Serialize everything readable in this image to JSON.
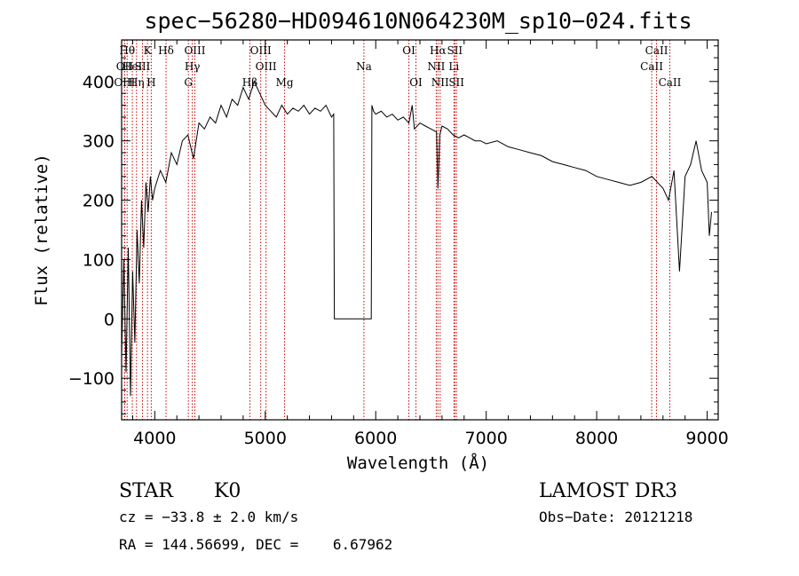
{
  "chart_data": {
    "type": "line",
    "title": "spec−56280−HD094610N064230M_sp10−024.fits",
    "xlabel": "Wavelength (Å)",
    "ylabel": "Flux (relative)",
    "xlim": [
      3700,
      9100
    ],
    "ylim": [
      -170,
      470
    ],
    "xticks": [
      {
        "value": 4000,
        "label": "4000"
      },
      {
        "value": 5000,
        "label": "5000"
      },
      {
        "value": 6000,
        "label": "6000"
      },
      {
        "value": 7000,
        "label": "7000"
      },
      {
        "value": 8000,
        "label": "8000"
      },
      {
        "value": 9000,
        "label": "9000"
      }
    ],
    "yticks": [
      {
        "value": -100,
        "label": "−100"
      },
      {
        "value": 0,
        "label": "0"
      },
      {
        "value": 100,
        "label": "100"
      },
      {
        "value": 200,
        "label": "200"
      },
      {
        "value": 300,
        "label": "300"
      },
      {
        "value": 400,
        "label": "400"
      }
    ],
    "series": [
      {
        "name": "flux",
        "color": "#000000",
        "x": [
          3700,
          3720,
          3740,
          3760,
          3780,
          3800,
          3820,
          3840,
          3860,
          3880,
          3900,
          3920,
          3940,
          3960,
          3980,
          4000,
          4050,
          4100,
          4150,
          4200,
          4250,
          4300,
          4350,
          4400,
          4450,
          4500,
          4550,
          4600,
          4650,
          4700,
          4750,
          4800,
          4850,
          4900,
          4950,
          5000,
          5050,
          5100,
          5150,
          5200,
          5250,
          5300,
          5350,
          5400,
          5450,
          5500,
          5550,
          5600,
          5620,
          5625,
          5700,
          5800,
          5900,
          5960,
          5965,
          5980,
          6000,
          6050,
          6100,
          6150,
          6200,
          6250,
          6300,
          6330,
          6350,
          6400,
          6450,
          6500,
          6550,
          6563,
          6580,
          6600,
          6650,
          6700,
          6750,
          6800,
          6850,
          6900,
          6950,
          7000,
          7100,
          7200,
          7300,
          7400,
          7500,
          7600,
          7700,
          7800,
          7900,
          8000,
          8100,
          8200,
          8300,
          8400,
          8500,
          8600,
          8650,
          8700,
          8750,
          8800,
          8850,
          8900,
          8950,
          9000,
          9020,
          9040
        ],
        "y": [
          -60,
          100,
          -90,
          120,
          -130,
          80,
          -40,
          150,
          60,
          200,
          120,
          230,
          180,
          240,
          200,
          220,
          250,
          230,
          280,
          260,
          300,
          310,
          270,
          330,
          320,
          340,
          330,
          360,
          340,
          370,
          360,
          390,
          370,
          400,
          380,
          360,
          350,
          340,
          360,
          345,
          355,
          350,
          360,
          345,
          355,
          350,
          360,
          340,
          345,
          0,
          0,
          0,
          0,
          0,
          360,
          350,
          345,
          350,
          340,
          345,
          335,
          340,
          330,
          360,
          320,
          330,
          325,
          320,
          315,
          220,
          310,
          325,
          320,
          310,
          305,
          310,
          305,
          300,
          300,
          295,
          300,
          290,
          285,
          280,
          275,
          265,
          260,
          255,
          250,
          240,
          235,
          230,
          225,
          230,
          240,
          220,
          200,
          250,
          80,
          240,
          260,
          300,
          250,
          230,
          140,
          180
        ]
      }
    ],
    "spectral_lines": [
      {
        "x": 3750,
        "label": "Hθ",
        "row": 0
      },
      {
        "x": 3727,
        "label": "OII",
        "row": 1
      },
      {
        "x": 3727,
        "label": "OIII",
        "row": 2
      },
      {
        "x": 3797,
        "label": "HeI",
        "row": 1
      },
      {
        "x": 3835,
        "label": "Hη",
        "row": 2
      },
      {
        "x": 3934,
        "label": "K",
        "row": 0
      },
      {
        "x": 3889,
        "label": "SII",
        "row": 1
      },
      {
        "x": 3968,
        "label": "H",
        "row": 2
      },
      {
        "x": 4102,
        "label": "Hδ",
        "row": 0
      },
      {
        "x": 4363,
        "label": "OIII",
        "row": 0
      },
      {
        "x": 4340,
        "label": "Hγ",
        "row": 1
      },
      {
        "x": 4304,
        "label": "G",
        "row": 2
      },
      {
        "x": 4861,
        "label": "Hβ",
        "row": 2
      },
      {
        "x": 4959,
        "label": "OIII",
        "row": 0
      },
      {
        "x": 5007,
        "label": "OIII",
        "row": 1
      },
      {
        "x": 5175,
        "label": "Mg",
        "row": 2
      },
      {
        "x": 5893,
        "label": "Na",
        "row": 1
      },
      {
        "x": 6300,
        "label": "OI",
        "row": 0
      },
      {
        "x": 6364,
        "label": "OI",
        "row": 2
      },
      {
        "x": 6563,
        "label": "Hα",
        "row": 0
      },
      {
        "x": 6548,
        "label": "NII",
        "row": 1
      },
      {
        "x": 6583,
        "label": "NII",
        "row": 2
      },
      {
        "x": 6716,
        "label": "SII",
        "row": 0
      },
      {
        "x": 6708,
        "label": "Li",
        "row": 1
      },
      {
        "x": 6731,
        "label": "SII",
        "row": 2
      },
      {
        "x": 8542,
        "label": "CaII",
        "row": 0
      },
      {
        "x": 8498,
        "label": "CaII",
        "row": 1
      },
      {
        "x": 8662,
        "label": "CaII",
        "row": 2
      }
    ],
    "line_marker_color": "#cc0000"
  },
  "info": {
    "class": "STAR",
    "subclass": "K0",
    "survey": "LAMOST DR3",
    "cz": "cz = −33.8 ± 2.0 km/s",
    "obs_date": "Obs−Date: 20121218",
    "radec": "RA = 144.56699, DEC =    6.67962"
  }
}
